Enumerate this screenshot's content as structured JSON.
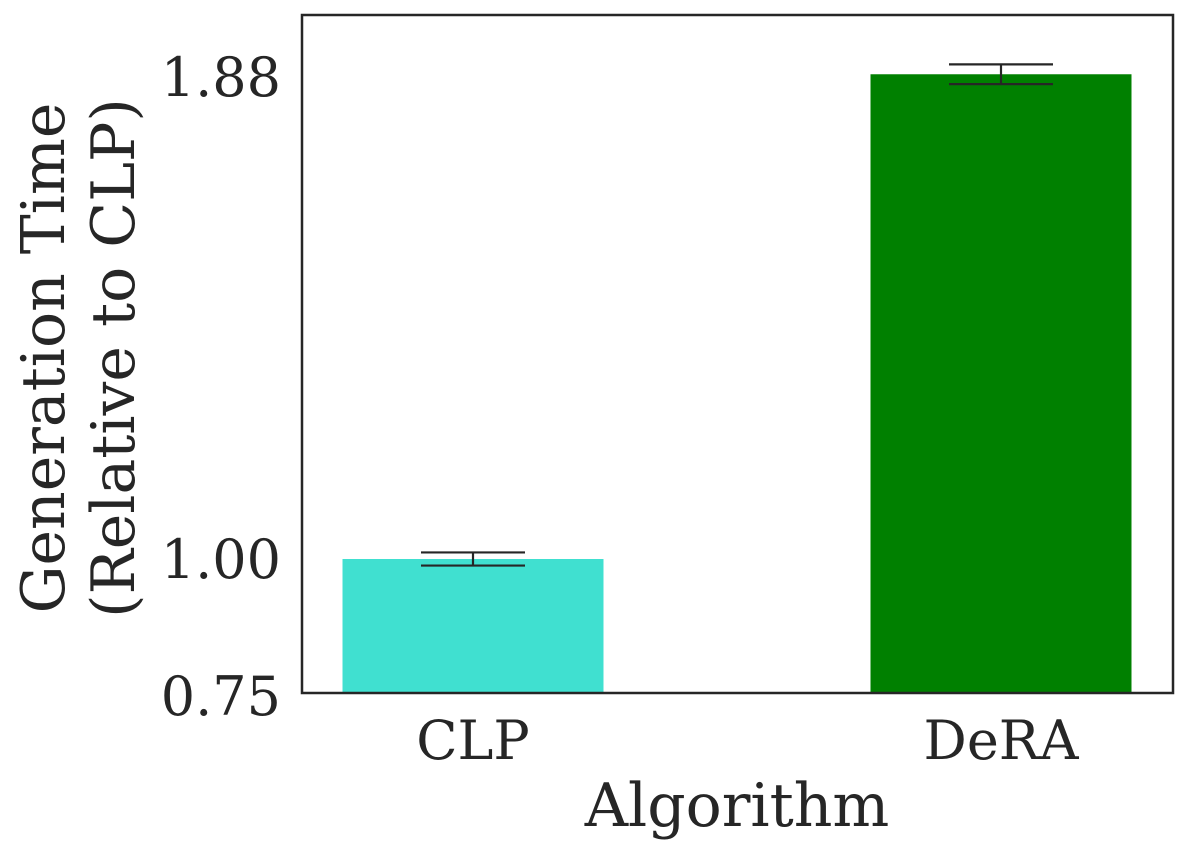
{
  "chart_data": {
    "type": "bar",
    "title": "",
    "xlabel": "Algorithm",
    "ylabel_lines": [
      "Generation Time",
      "(Relative to CLP)"
    ],
    "categories": [
      "CLP",
      "DeRA"
    ],
    "values": [
      1.0,
      1.885
    ],
    "errors": [
      0.012,
      0.018
    ],
    "colors": [
      "#40e0d0",
      "#008000"
    ],
    "error_color": "#262626",
    "ylim": [
      0.75,
      2.0
    ],
    "yticks": [
      0.75,
      1.0,
      1.88
    ],
    "ytick_labels": [
      "0.75",
      "1.00",
      "1.88"
    ],
    "grid": false,
    "legend": "none"
  }
}
